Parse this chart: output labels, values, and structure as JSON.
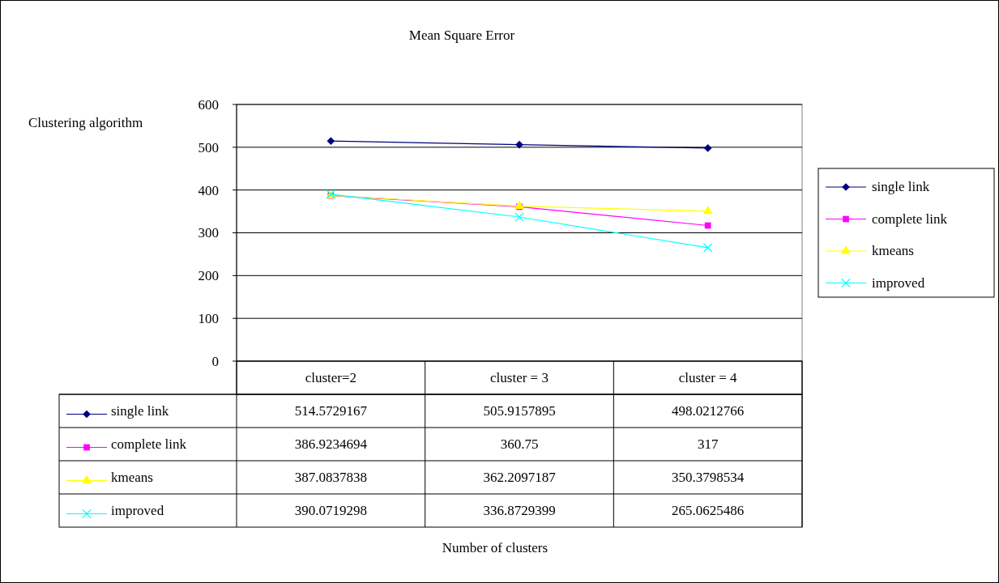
{
  "chart_data": {
    "type": "line",
    "title": "Mean Square Error",
    "ylabel": "Clustering algorithm",
    "annotations": [
      "Number of clusters"
    ],
    "categories": [
      "cluster=2",
      "cluster = 3",
      "cluster = 4"
    ],
    "series": [
      {
        "name": "single link",
        "color": "#000080",
        "marker": "diamond",
        "values": [
          514.5729167,
          505.9157895,
          498.0212766
        ]
      },
      {
        "name": "complete link",
        "color": "#ff00ff",
        "marker": "square",
        "values": [
          386.9234694,
          360.75,
          317
        ]
      },
      {
        "name": "kmeans",
        "color": "#ffff00",
        "marker": "triangle",
        "values": [
          387.0837838,
          362.2097187,
          350.3798534
        ]
      },
      {
        "name": "improved",
        "color": "#00ffff",
        "marker": "cross",
        "values": [
          390.0719298,
          336.8729399,
          265.0625486
        ]
      }
    ],
    "ylim": [
      0,
      600
    ],
    "yticks": [
      0,
      100,
      200,
      300,
      400,
      500,
      600
    ],
    "grid": "y",
    "legend": "right",
    "data_labels": true
  }
}
